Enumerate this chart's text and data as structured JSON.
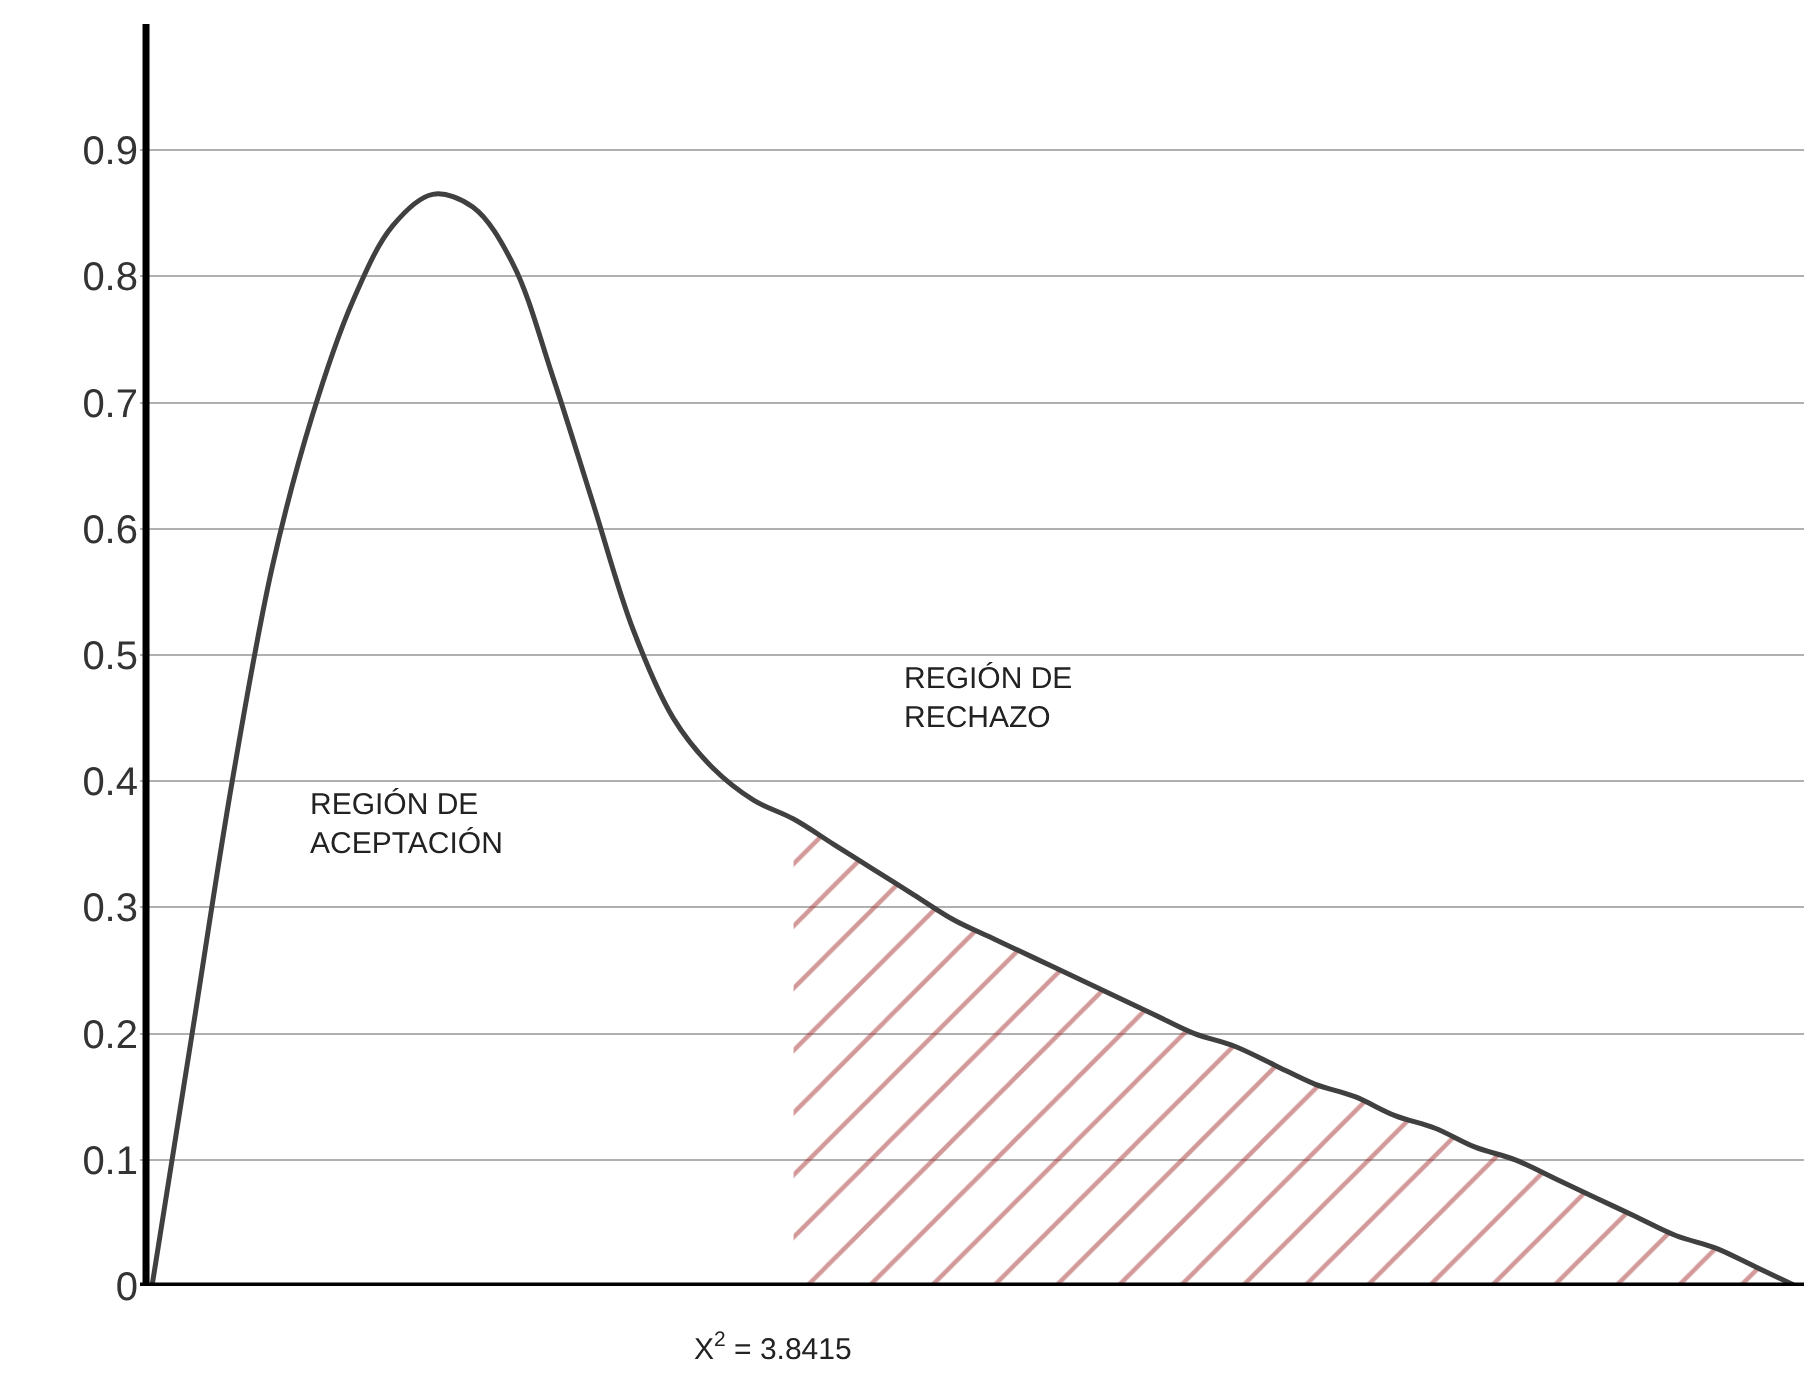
{
  "chart_data": {
    "type": "line",
    "categories": [
      null,
      null,
      null,
      null,
      null,
      null,
      null,
      null,
      null,
      null,
      null,
      null,
      null,
      null,
      null,
      null,
      null,
      null,
      null,
      null,
      null,
      null,
      null,
      null,
      null,
      null,
      null,
      null,
      null,
      null,
      null,
      null,
      null,
      null,
      null,
      null,
      null,
      null,
      null,
      null,
      null,
      null
    ],
    "series": [
      {
        "color": "#404040",
        "values": [
          0,
          0.2,
          0.4,
          0.57,
          0.69,
          0.78,
          0.84,
          0.865,
          0.855,
          0.81,
          0.72,
          0.62,
          0.52,
          0.45,
          0.41,
          0.385,
          0.37,
          0.35,
          0.33,
          0.31,
          0.29,
          0.275,
          0.26,
          0.245,
          0.23,
          0.215,
          0.2,
          0.19,
          0.175,
          0.16,
          0.15,
          0.135,
          0.125,
          0.11,
          0.1,
          0.085,
          0.07,
          0.055,
          0.04,
          0.03,
          0.015,
          0
        ]
      },
      {
        "type": "area",
        "color": "#a83232",
        "values": [
          null,
          null,
          null,
          null,
          null,
          null,
          null,
          null,
          null,
          null,
          null,
          null,
          null,
          null,
          null,
          null,
          0.37,
          0.35,
          0.33,
          0.31,
          0.29,
          0.275,
          0.26,
          0.245,
          0.23,
          0.215,
          0.2,
          0.19,
          0.175,
          0.16,
          0.15,
          0.135,
          0.125,
          0.11,
          0.1,
          0.085,
          0.07,
          0.055,
          0.04,
          0.03,
          0.015,
          0
        ]
      }
    ],
    "ylim": [
      0,
      1.0
    ],
    "yticks": [
      0,
      0.1,
      0.2,
      0.3,
      0.4,
      0.5,
      0.6,
      0.7,
      0.8,
      0.9
    ],
    "grid": "y",
    "tick_labels": "y",
    "annotations": [
      "REGIÓN DE\nACEPTACIÓN",
      "REGIÓN DE\nRECHAZO",
      "X$^{2}$ = 3.8415"
    ]
  }
}
